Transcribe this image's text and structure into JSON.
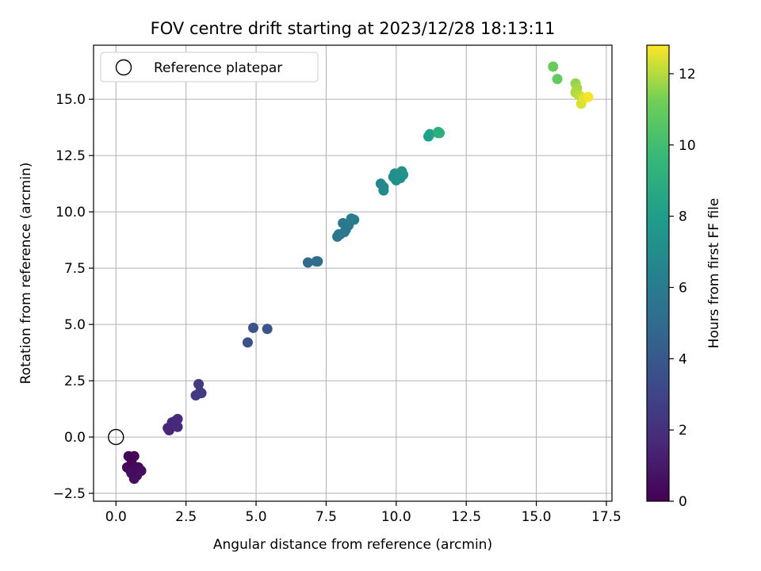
{
  "chart_data": {
    "type": "scatter",
    "title": "FOV centre drift starting at 2023/12/28 18:13:11",
    "xlabel": "Angular distance from reference (arcmin)",
    "ylabel": "Rotation from reference (arcmin)",
    "xlim": [
      -0.8,
      17.7
    ],
    "ylim": [
      -2.85,
      17.4
    ],
    "xticks": [
      "0.0",
      "2.5",
      "5.0",
      "7.5",
      "10.0",
      "12.5",
      "15.0",
      "17.5"
    ],
    "yticks": [
      "−2.5",
      "0.0",
      "2.5",
      "5.0",
      "7.5",
      "10.0",
      "12.5",
      "15.0"
    ],
    "grid": true,
    "legend": {
      "placement": "top-left",
      "entries": [
        "Reference platepar"
      ]
    },
    "reference_point": {
      "x": 0.0,
      "y": 0.0
    },
    "colorbar": {
      "label": "Hours from first FF file",
      "range": [
        0,
        12.8
      ],
      "ticks": [
        "0",
        "2",
        "4",
        "6",
        "8",
        "10",
        "12"
      ],
      "colormap": "viridis"
    },
    "points": [
      {
        "x": 0.45,
        "y": -0.85,
        "c": 0.1
      },
      {
        "x": 0.55,
        "y": -1.0,
        "c": 0.2
      },
      {
        "x": 0.65,
        "y": -0.85,
        "c": 0.15
      },
      {
        "x": 0.4,
        "y": -1.35,
        "c": 0.3
      },
      {
        "x": 0.5,
        "y": -1.45,
        "c": 0.35
      },
      {
        "x": 0.6,
        "y": -1.25,
        "c": 0.25
      },
      {
        "x": 0.7,
        "y": -1.55,
        "c": 0.4
      },
      {
        "x": 0.8,
        "y": -1.35,
        "c": 0.45
      },
      {
        "x": 0.9,
        "y": -1.5,
        "c": 0.5
      },
      {
        "x": 0.65,
        "y": -1.85,
        "c": 0.55
      },
      {
        "x": 0.75,
        "y": -1.7,
        "c": 0.6
      },
      {
        "x": 0.55,
        "y": -1.6,
        "c": 0.5
      },
      {
        "x": 1.85,
        "y": 0.4,
        "c": 1.5
      },
      {
        "x": 1.9,
        "y": 0.3,
        "c": 1.55
      },
      {
        "x": 2.0,
        "y": 0.65,
        "c": 1.6
      },
      {
        "x": 2.1,
        "y": 0.7,
        "c": 1.65
      },
      {
        "x": 2.2,
        "y": 0.8,
        "c": 1.7
      },
      {
        "x": 2.2,
        "y": 0.45,
        "c": 1.75
      },
      {
        "x": 2.85,
        "y": 1.85,
        "c": 2.4
      },
      {
        "x": 3.0,
        "y": 2.0,
        "c": 2.45
      },
      {
        "x": 3.05,
        "y": 1.95,
        "c": 2.5
      },
      {
        "x": 2.95,
        "y": 2.35,
        "c": 2.5
      },
      {
        "x": 4.7,
        "y": 4.2,
        "c": 3.6
      },
      {
        "x": 4.9,
        "y": 4.85,
        "c": 3.7
      },
      {
        "x": 5.4,
        "y": 4.8,
        "c": 3.8
      },
      {
        "x": 6.85,
        "y": 7.75,
        "c": 4.9
      },
      {
        "x": 7.15,
        "y": 7.8,
        "c": 5.0
      },
      {
        "x": 7.2,
        "y": 7.8,
        "c": 5.05
      },
      {
        "x": 7.9,
        "y": 8.9,
        "c": 5.6
      },
      {
        "x": 7.95,
        "y": 9.0,
        "c": 5.65
      },
      {
        "x": 8.0,
        "y": 9.0,
        "c": 5.7
      },
      {
        "x": 8.1,
        "y": 9.5,
        "c": 5.75
      },
      {
        "x": 8.2,
        "y": 9.2,
        "c": 5.8
      },
      {
        "x": 8.3,
        "y": 9.4,
        "c": 5.85
      },
      {
        "x": 8.4,
        "y": 9.7,
        "c": 5.9
      },
      {
        "x": 8.5,
        "y": 9.65,
        "c": 5.95
      },
      {
        "x": 8.15,
        "y": 9.1,
        "c": 5.8
      },
      {
        "x": 9.45,
        "y": 11.25,
        "c": 6.7
      },
      {
        "x": 9.55,
        "y": 11.1,
        "c": 6.75
      },
      {
        "x": 9.55,
        "y": 10.95,
        "c": 6.8
      },
      {
        "x": 9.9,
        "y": 11.55,
        "c": 7.0
      },
      {
        "x": 9.95,
        "y": 11.7,
        "c": 7.05
      },
      {
        "x": 10.0,
        "y": 11.4,
        "c": 7.1
      },
      {
        "x": 10.05,
        "y": 11.6,
        "c": 7.15
      },
      {
        "x": 10.1,
        "y": 11.7,
        "c": 7.2
      },
      {
        "x": 10.15,
        "y": 11.5,
        "c": 7.25
      },
      {
        "x": 10.2,
        "y": 11.8,
        "c": 7.3
      },
      {
        "x": 10.25,
        "y": 11.65,
        "c": 7.3
      },
      {
        "x": 11.15,
        "y": 13.35,
        "c": 8.1
      },
      {
        "x": 11.2,
        "y": 13.45,
        "c": 8.15
      },
      {
        "x": 11.5,
        "y": 13.5,
        "c": 8.8
      },
      {
        "x": 11.55,
        "y": 13.5,
        "c": 9.2
      },
      {
        "x": 11.5,
        "y": 13.55,
        "c": 9.0
      },
      {
        "x": 15.6,
        "y": 16.45,
        "c": 11.0
      },
      {
        "x": 15.75,
        "y": 15.9,
        "c": 10.9
      },
      {
        "x": 16.4,
        "y": 15.7,
        "c": 11.6
      },
      {
        "x": 16.45,
        "y": 15.5,
        "c": 11.8
      },
      {
        "x": 16.4,
        "y": 15.3,
        "c": 11.9
      },
      {
        "x": 16.5,
        "y": 15.2,
        "c": 12.0
      },
      {
        "x": 16.6,
        "y": 15.1,
        "c": 12.2
      },
      {
        "x": 16.6,
        "y": 14.8,
        "c": 12.4
      },
      {
        "x": 16.7,
        "y": 15.05,
        "c": 12.5
      },
      {
        "x": 16.85,
        "y": 15.1,
        "c": 12.7
      }
    ]
  }
}
